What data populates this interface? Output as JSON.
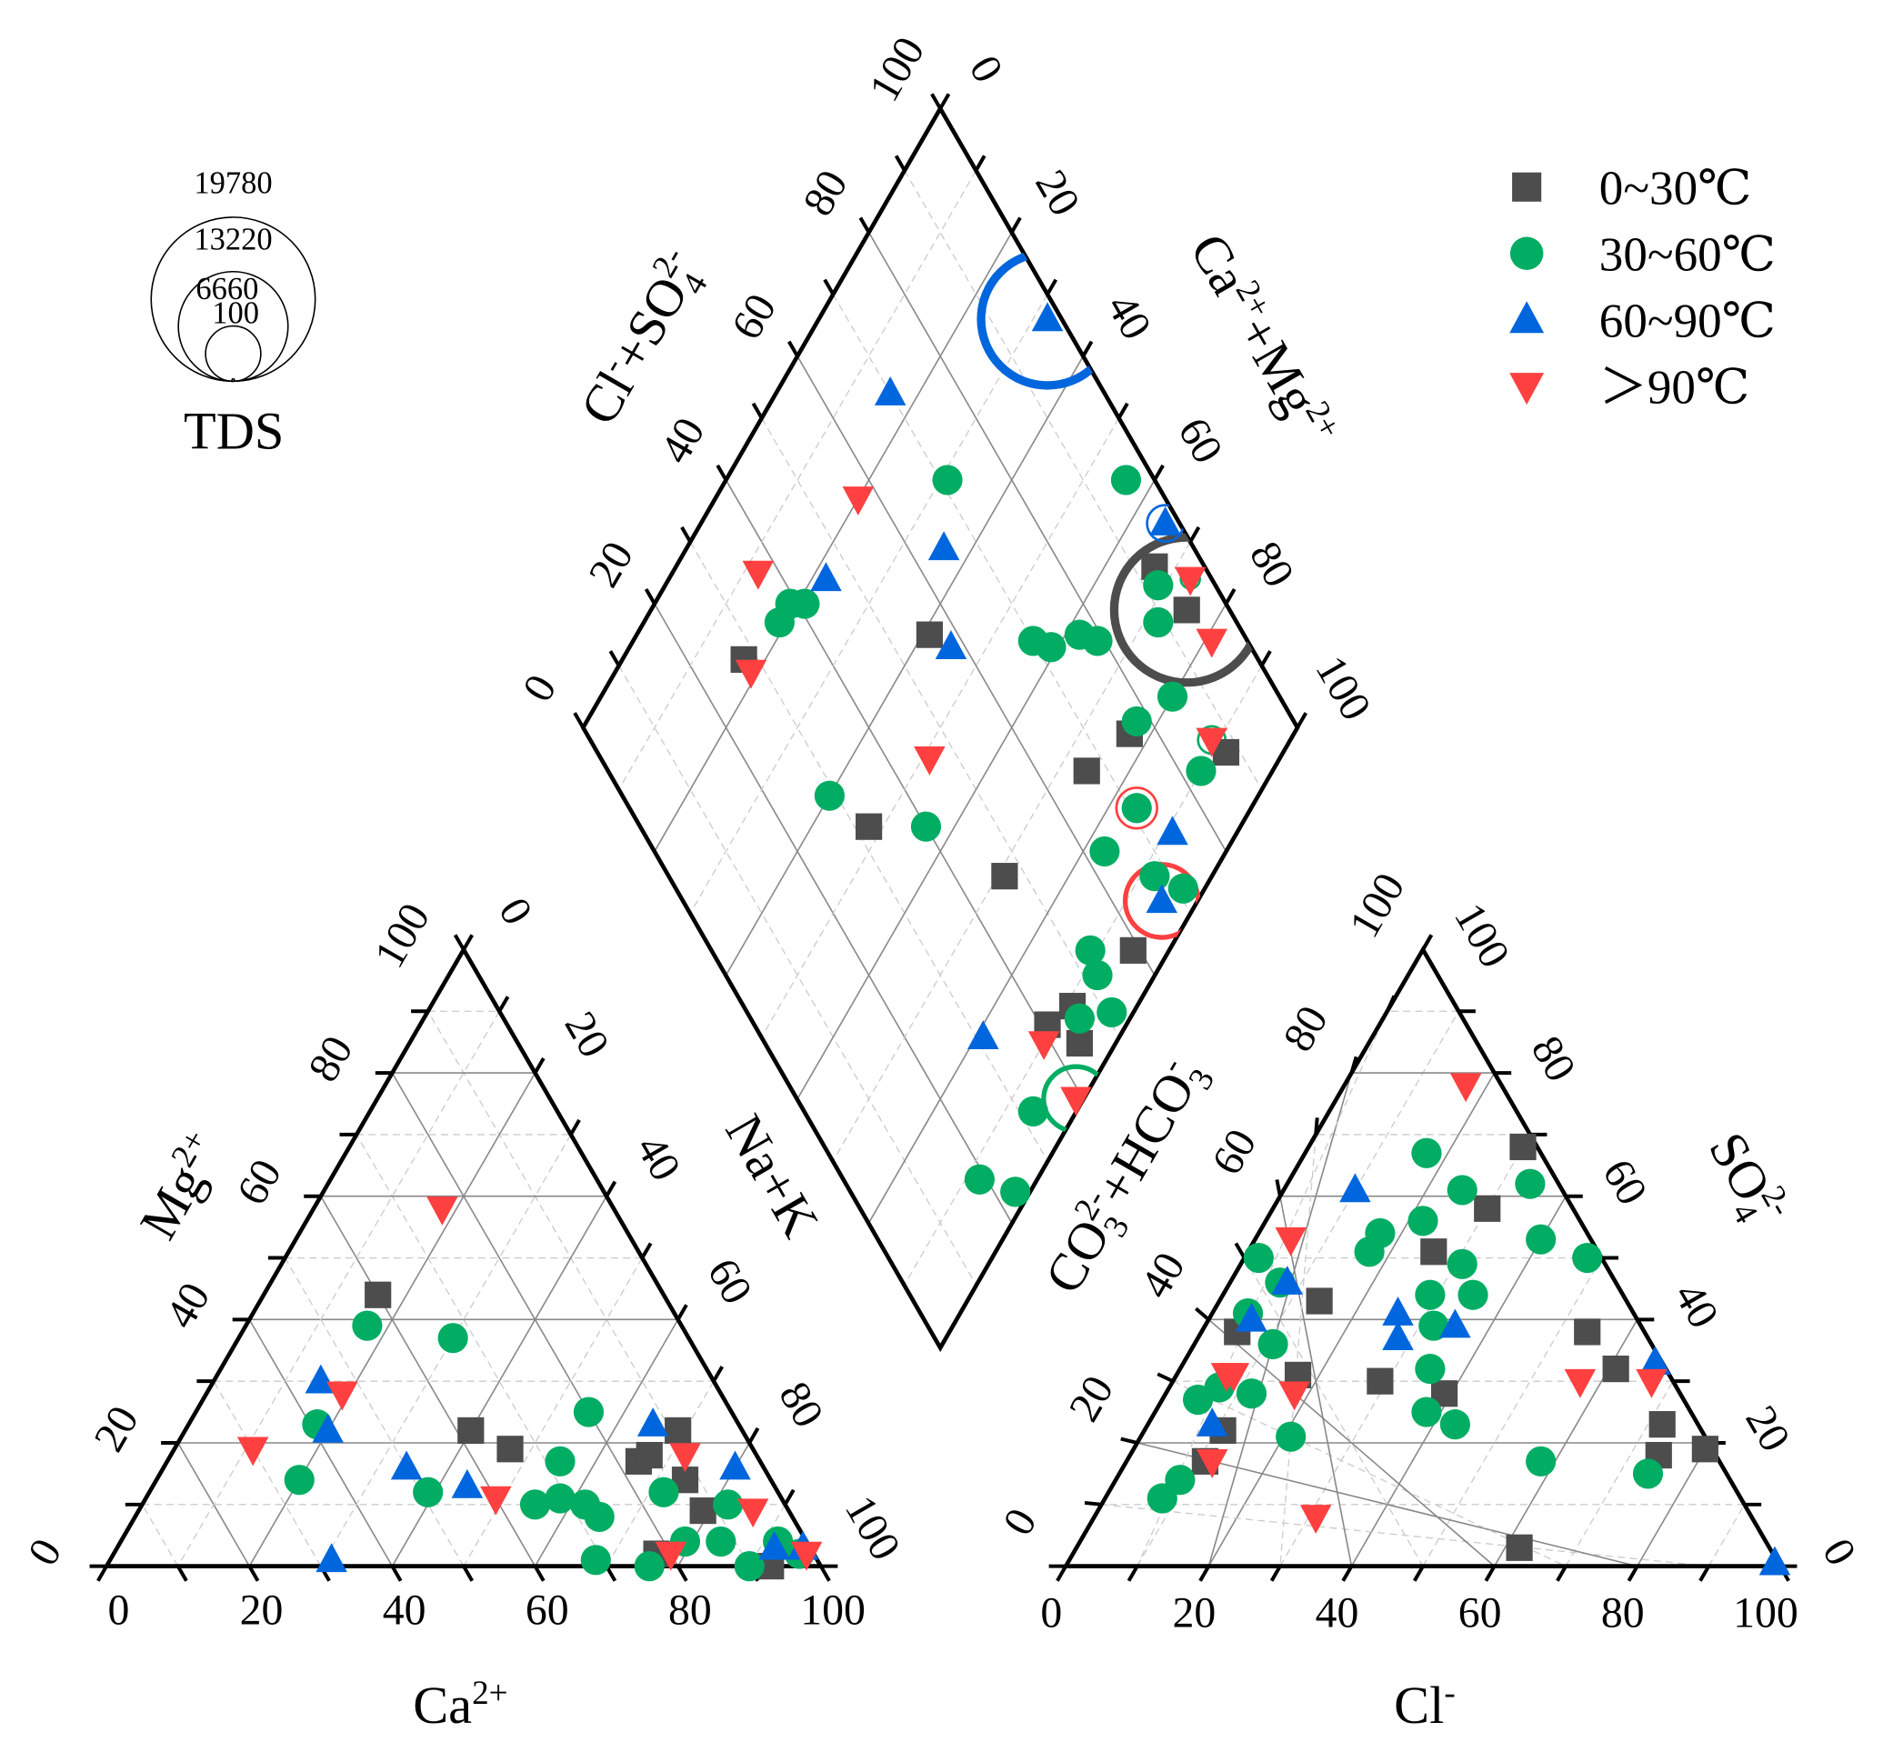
{
  "chart_data": {
    "type": "scatter",
    "subtype": "piper-diagram",
    "colors": {
      "0~30": "#4d4d4d",
      "30~60": "#00ad63",
      "60~90": "#0066dd",
      ">90": "#ff4040"
    },
    "legend": {
      "placement": "top-right",
      "entries": [
        {
          "key": "0~30",
          "label": "0~30℃",
          "marker": "square"
        },
        {
          "key": "30~60",
          "label": "30~60℃",
          "marker": "circle"
        },
        {
          "key": "60~90",
          "label": "60~90℃",
          "marker": "triangle-up"
        },
        {
          "key": ">90",
          "label": "＞90℃",
          "marker": "triangle-down"
        }
      ]
    },
    "tds_legend": {
      "title": "TDS",
      "values": [
        19780,
        13220,
        6660,
        100
      ]
    },
    "axes": {
      "cation_bottom": {
        "title": "Ca",
        "title_sup": "2+",
        "ticks": [
          "100",
          "80",
          "60",
          "40",
          "20",
          "0"
        ]
      },
      "cation_left": {
        "title": "Mg",
        "title_sup": "2+",
        "ticks": [
          "0",
          "20",
          "40",
          "60",
          "80",
          "100"
        ]
      },
      "cation_right": {
        "title": "Na+K",
        "ticks": [
          "0",
          "20",
          "40",
          "60",
          "80",
          "100"
        ]
      },
      "anion_bottom": {
        "title": "Cl",
        "title_sup": "-",
        "ticks": [
          "0",
          "20",
          "40",
          "60",
          "80",
          "100"
        ]
      },
      "anion_left": {
        "title": "CO3 2- + HCO3 -",
        "ticks": [
          "100",
          "80",
          "60",
          "40",
          "20",
          "0"
        ]
      },
      "anion_right": {
        "title": "SO4 2-",
        "ticks": [
          "100",
          "80",
          "60",
          "40",
          "20",
          "0"
        ]
      },
      "diamond_left": {
        "title": "Cl- + SO4 2-",
        "ticks": [
          "0",
          "20",
          "40",
          "60",
          "80",
          "100"
        ]
      },
      "diamond_right": {
        "title": "Ca2+ + Mg2+",
        "ticks": [
          "100",
          "80",
          "60",
          "40",
          "20",
          "0"
        ]
      }
    },
    "cation_points_ca_mg": {
      "0~30": [
        [
          40,
          44
        ],
        [
          38,
          22
        ],
        [
          34,
          19
        ],
        [
          17,
          17
        ],
        [
          15,
          18
        ],
        [
          9,
          22
        ],
        [
          12,
          14
        ],
        [
          12,
          9
        ],
        [
          22,
          2
        ],
        [
          7,
          0
        ]
      ],
      "30~60": [
        [
          44,
          39
        ],
        [
          33,
          37
        ],
        [
          59,
          23
        ],
        [
          66,
          14
        ],
        [
          49,
          12
        ],
        [
          20,
          25
        ],
        [
          28,
          17
        ],
        [
          35,
          10
        ],
        [
          31,
          11
        ],
        [
          28,
          10
        ],
        [
          27,
          8
        ],
        [
          31,
          1
        ],
        [
          16,
          12
        ],
        [
          17,
          4
        ],
        [
          24,
          0
        ],
        [
          12,
          4
        ],
        [
          8,
          10
        ],
        [
          10,
          0
        ],
        [
          4,
          4
        ],
        [
          2,
          2
        ]
      ],
      "60~90": [
        [
          55,
          30
        ],
        [
          58,
          22
        ],
        [
          68,
          1
        ],
        [
          50,
          16
        ],
        [
          43,
          13
        ],
        [
          12,
          23
        ],
        [
          4,
          16
        ],
        [
          5,
          3
        ],
        [
          1,
          3
        ]
      ],
      ">90": [
        [
          24,
          58
        ],
        [
          53,
          28
        ],
        [
          70,
          19
        ],
        [
          40,
          11
        ],
        [
          10,
          18
        ],
        [
          20,
          2
        ],
        [
          5,
          9
        ],
        [
          1,
          2
        ]
      ]
    },
    "anion_points_cl_so4": {
      "0~30": [
        [
          30,
          68
        ],
        [
          30,
          58
        ],
        [
          26,
          51
        ],
        [
          14,
          43
        ],
        [
          5,
          38
        ],
        [
          17,
          31
        ],
        [
          29,
          30
        ],
        [
          39,
          28
        ],
        [
          54,
          38
        ],
        [
          61,
          32
        ],
        [
          72,
          23
        ],
        [
          74,
          18
        ],
        [
          80,
          19
        ],
        [
          62,
          3
        ],
        [
          11,
          22
        ],
        [
          11,
          17
        ]
      ],
      "30~60": [
        [
          17,
          67
        ],
        [
          25,
          61
        ],
        [
          34,
          62
        ],
        [
          40,
          53
        ],
        [
          48,
          50
        ],
        [
          22,
          56
        ],
        [
          17,
          54
        ],
        [
          17,
          51
        ],
        [
          31,
          49
        ],
        [
          29,
          44
        ],
        [
          35,
          44
        ],
        [
          32,
          39
        ],
        [
          35,
          32
        ],
        [
          38,
          25
        ],
        [
          43,
          23
        ],
        [
          2,
          50
        ],
        [
          7,
          46
        ],
        [
          5,
          41
        ],
        [
          11,
          36
        ],
        [
          12,
          28
        ],
        [
          7,
          29
        ],
        [
          5,
          27
        ],
        [
          21,
          21
        ],
        [
          9,
          14
        ],
        [
          8,
          11
        ],
        [
          58,
          17
        ],
        [
          74,
          15
        ]
      ],
      "60~90": [
        [
          10,
          61
        ],
        [
          8,
          46
        ],
        [
          6,
          40
        ],
        [
          26,
          41
        ],
        [
          28,
          37
        ],
        [
          35,
          39
        ],
        [
          9,
          23
        ],
        [
          66,
          33
        ],
        [
          99,
          0.5
        ]
      ],
      ">90": [
        [
          17,
          78
        ],
        [
          5,
          53
        ],
        [
          7,
          31
        ],
        [
          8,
          31
        ],
        [
          18,
          28
        ],
        [
          12,
          17
        ],
        [
          31,
          8
        ],
        [
          57,
          30
        ],
        [
          67,
          30
        ]
      ]
    },
    "diamond_points_clso4_camg": {
      "0~30": [
        [
          28,
          83
        ],
        [
          56,
          59
        ],
        [
          67,
          26
        ],
        [
          76,
          23
        ],
        [
          88,
          8
        ],
        [
          32,
          52
        ],
        [
          47,
          29
        ],
        [
          93,
          33
        ],
        [
          94,
          25
        ],
        [
          59,
          5
        ],
        [
          46,
          9
        ],
        [
          44,
          5
        ],
        [
          41,
          11
        ]
      ],
      "30~60": [
        [
          71,
          69
        ],
        [
          96,
          44
        ],
        [
          39,
          81
        ],
        [
          41,
          79
        ],
        [
          36,
          81
        ],
        [
          70,
          44
        ],
        [
          72,
          41
        ],
        [
          77,
          38
        ],
        [
          79,
          35
        ],
        [
          92,
          31
        ],
        [
          89,
          28
        ],
        [
          85,
          20
        ],
        [
          78,
          23
        ],
        [
          83,
          10
        ],
        [
          29,
          60
        ],
        [
          40,
          44
        ],
        [
          71,
          16
        ],
        [
          63,
          17
        ],
        [
          68,
          8
        ],
        [
          71,
          3
        ],
        [
          53,
          11
        ],
        [
          52,
          8
        ],
        [
          51,
          3
        ],
        [
          46,
          7
        ],
        [
          32,
          6
        ],
        [
          19,
          8
        ],
        [
          23,
          2
        ]
      ],
      "60~90": [
        [
          98,
          68
        ],
        [
          70,
          84
        ],
        [
          46,
          78
        ],
        [
          65,
          64
        ],
        [
          58,
          55
        ],
        [
          98,
          35
        ],
        [
          74,
          9
        ],
        [
          67,
          5
        ],
        [
          31,
          19
        ]
      ],
      ">90": [
        [
          57,
          80
        ],
        [
          37,
          88
        ],
        [
          28,
          81
        ],
        [
          46,
          49
        ],
        [
          97,
          27
        ],
        [
          95,
          19
        ],
        [
          87,
          11
        ],
        [
          39,
          10
        ],
        [
          39,
          1
        ]
      ]
    },
    "tds_circles_clso4_camg": [
      {
        "group": "60~90",
        "at": [
          98,
          68
        ],
        "tds": 16000
      },
      {
        "group": "0~30",
        "at": [
          94,
          25
        ],
        "tds": 17500
      },
      {
        "group": ">90",
        "at": [
          67,
          5
        ],
        "tds": 8800
      },
      {
        "group": "30~60",
        "at": [
          39,
          1
        ],
        "tds": 7800
      },
      {
        "group": ">90",
        "at": [
          71,
          16
        ],
        "tds": 4900
      },
      {
        "group": "60~90",
        "at": [
          98,
          35
        ],
        "tds": 4400
      },
      {
        "group": ">90",
        "at": [
          96,
          44
        ],
        "tds": 2900
      },
      {
        "group": ">90",
        "at": [
          89,
          28
        ],
        "tds": 2900
      },
      {
        "group": "30~60",
        "at": [
          97,
          27
        ],
        "tds": 2300
      },
      {
        "group": "30~60",
        "at": [
          87,
          11
        ],
        "tds": 3300
      }
    ]
  }
}
